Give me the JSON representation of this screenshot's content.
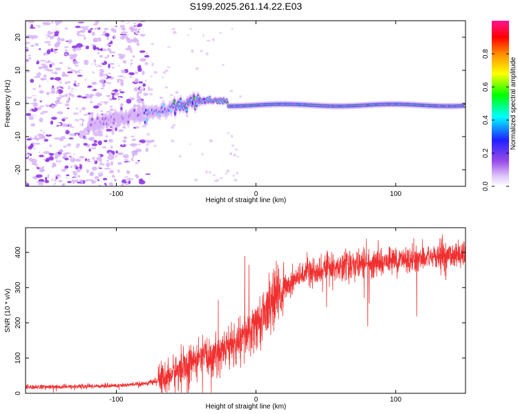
{
  "title": "S199.2025.261.14.22.E03",
  "chart_data": [
    {
      "type": "heatmap",
      "xlabel": "Height of straight line (km)",
      "ylabel": "Frequency (Hz)",
      "xlim": [
        -165,
        150
      ],
      "ylim": [
        -25,
        25
      ],
      "xticks": [
        -100,
        0,
        100
      ],
      "yticks": [
        -20,
        -10,
        0,
        10,
        20
      ],
      "colorbar": {
        "label": "Normalized spectral amplitude",
        "range": [
          0.0,
          1.0
        ],
        "ticks": [
          0.0,
          0.2,
          0.4,
          0.6,
          0.8
        ],
        "tick_labels": [
          "0.0",
          "0.2",
          "0.4",
          "0.6",
          "0.8"
        ],
        "colors": [
          "#ffffff",
          "#d8b4f8",
          "#8a2be2",
          "#2020ff",
          "#00ffff",
          "#00ff00",
          "#ffff00",
          "#ff8c00",
          "#ff0000",
          "#ff1493"
        ]
      },
      "features": {
        "noise_region_x": [
          -165,
          -80
        ],
        "ridge_onset_x": -80,
        "ridge_frequency_hz": 0
      }
    },
    {
      "type": "line",
      "xlabel": "Height of straight line (km)",
      "ylabel": "SNR (10 * v/v)",
      "xlim": [
        -165,
        150
      ],
      "ylim": [
        0,
        470
      ],
      "xticks": [
        -100,
        0,
        100
      ],
      "yticks": [
        0,
        100,
        200,
        300,
        400
      ],
      "color": "#f03030",
      "series": [
        {
          "name": "SNR",
          "x": [
            -165,
            -140,
            -120,
            -100,
            -90,
            -80,
            -70,
            -60,
            -50,
            -40,
            -30,
            -20,
            -10,
            0,
            10,
            20,
            30,
            40,
            60,
            80,
            100,
            120,
            140,
            150
          ],
          "values": [
            18,
            18,
            20,
            22,
            24,
            28,
            35,
            55,
            80,
            95,
            110,
            130,
            150,
            190,
            250,
            300,
            330,
            345,
            360,
            368,
            378,
            385,
            392,
            395
          ]
        }
      ],
      "spikes": [
        {
          "x": -8,
          "value": 390
        },
        {
          "x": -27,
          "value": 265
        },
        {
          "x": -5,
          "value": 365
        },
        {
          "x": 80,
          "value": 190
        }
      ]
    }
  ]
}
